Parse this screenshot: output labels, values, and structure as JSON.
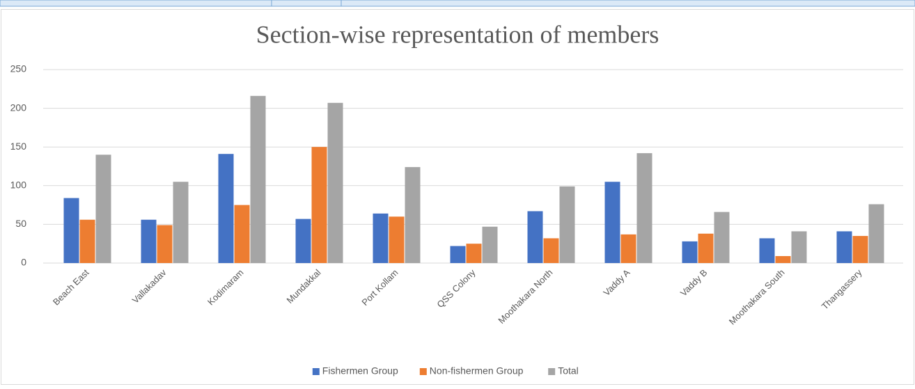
{
  "chart_data": {
    "type": "bar",
    "title": "Section-wise representation of members",
    "categories": [
      "Beach East",
      "Vallakadav",
      "Kodimaram",
      "Mundakkal",
      "Port Kollam",
      "QSS Colony",
      "Moothakara North",
      "Vaddy A",
      "Vaddy B",
      "Moothakara South",
      "Thangassery"
    ],
    "series": [
      {
        "name": "Fishermen Group",
        "color": "#4472c4",
        "values": [
          84,
          56,
          141,
          57,
          64,
          22,
          67,
          105,
          28,
          32,
          41
        ]
      },
      {
        "name": "Non-fishermen Group",
        "color": "#ed7d31",
        "values": [
          56,
          49,
          75,
          150,
          60,
          25,
          32,
          37,
          38,
          9,
          35
        ]
      },
      {
        "name": "Total",
        "color": "#a5a5a5",
        "values": [
          140,
          105,
          216,
          207,
          124,
          47,
          99,
          142,
          66,
          41,
          76
        ]
      }
    ],
    "ylim": [
      0,
      250
    ],
    "yticks": [
      0,
      50,
      100,
      150,
      200,
      250
    ],
    "grid": true,
    "legend": "bottom"
  }
}
